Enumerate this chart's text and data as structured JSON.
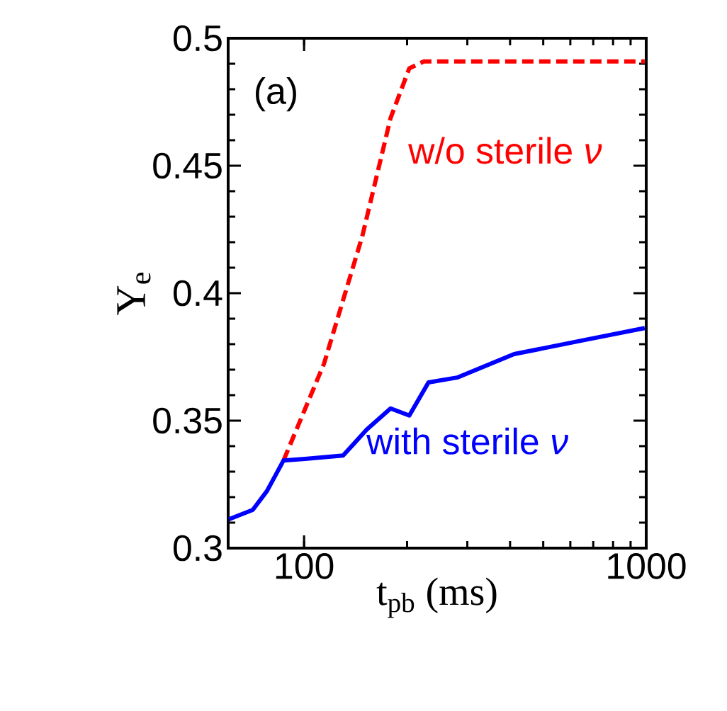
{
  "chart_data": {
    "type": "line",
    "xlabel": "t$_{pb}$ (ms)",
    "ylabel": "Y$_{e}$",
    "log": "x",
    "xlim": [
      60,
      1000
    ],
    "xticks": [
      100,
      1000
    ],
    "ylim": [
      0.3,
      0.5
    ],
    "yticks": [
      0.3,
      0.35,
      0.4,
      0.45,
      0.5
    ],
    "annotations": [
      "(a)"
    ],
    "grid": false,
    "marker": "none",
    "series": [
      {
        "name": "w/o sterile *ν*",
        "color": "#ff0000",
        "line_style": "dashed",
        "x": [
          87.1,
          114.4,
          148,
          179,
          203,
          224,
          990
        ],
        "values": [
          0.3344,
          0.3724,
          0.4224,
          0.4687,
          0.4882,
          0.4909,
          0.4909
        ]
      },
      {
        "name": "with sterile *ν*",
        "color": "#0000ff",
        "line_style": "solid",
        "x": [
          60.3,
          70.8,
          77.9,
          87.1,
          100.6,
          130,
          152.5,
          179,
          203,
          231,
          280,
          411,
          664,
          990
        ],
        "values": [
          0.3113,
          0.315,
          0.3224,
          0.3344,
          0.335,
          0.3363,
          0.3465,
          0.3548,
          0.352,
          0.365,
          0.3669,
          0.3761,
          0.3817,
          0.3863
        ]
      }
    ]
  }
}
